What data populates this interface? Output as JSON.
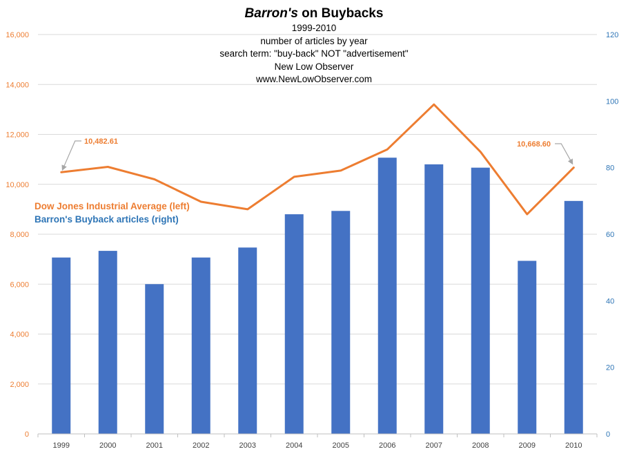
{
  "title": {
    "italic_part": "Barron's",
    "rest": " on Buybacks",
    "subtitle_lines": [
      "1999-2010",
      "number of articles by year",
      "search term: \"buy-back\" NOT \"advertisement\"",
      "New Low Observer",
      "www.NewLowObserver.com"
    ]
  },
  "legend": {
    "dow_label": "Dow Jones Industrial Average (left)",
    "barrons_label": "Barron's Buyback articles (right)"
  },
  "colors": {
    "bar": "#4472C4",
    "line": "#ED7D31",
    "left_axis_text": "#ED7D31",
    "right_axis_text": "#2E75B6",
    "grid": "#D9D9D9",
    "annotation_arrow": "#A6A6A6"
  },
  "chart_data": {
    "type": "bar",
    "categories": [
      "1999",
      "2000",
      "2001",
      "2002",
      "2003",
      "2004",
      "2005",
      "2006",
      "2007",
      "2008",
      "2009",
      "2010"
    ],
    "series": [
      {
        "name": "Barron's Buyback articles (right)",
        "type": "bar",
        "axis": "right",
        "values": [
          53,
          55,
          45,
          53,
          56,
          66,
          67,
          83,
          81,
          80,
          52,
          70
        ]
      },
      {
        "name": "Dow Jones Industrial Average (left)",
        "type": "line",
        "axis": "left",
        "values": [
          10482.61,
          10700,
          10200,
          9300,
          9000,
          10300,
          10550,
          11400,
          13200,
          11300,
          8800,
          10668.6
        ]
      }
    ],
    "y_left": {
      "ylim": [
        0,
        16000
      ],
      "ticks": [
        "0",
        "2,000",
        "4,000",
        "6,000",
        "8,000",
        "10,000",
        "12,000",
        "14,000",
        "16,000"
      ]
    },
    "y_right": {
      "ylim": [
        0,
        120
      ],
      "ticks": [
        "0",
        "20",
        "40",
        "60",
        "80",
        "100",
        "120"
      ]
    },
    "annotations": [
      {
        "label": "10,482.61",
        "category": "1999"
      },
      {
        "label": "10,668.60",
        "category": "2010"
      }
    ],
    "grid": true,
    "legend_position": "left-middle"
  }
}
